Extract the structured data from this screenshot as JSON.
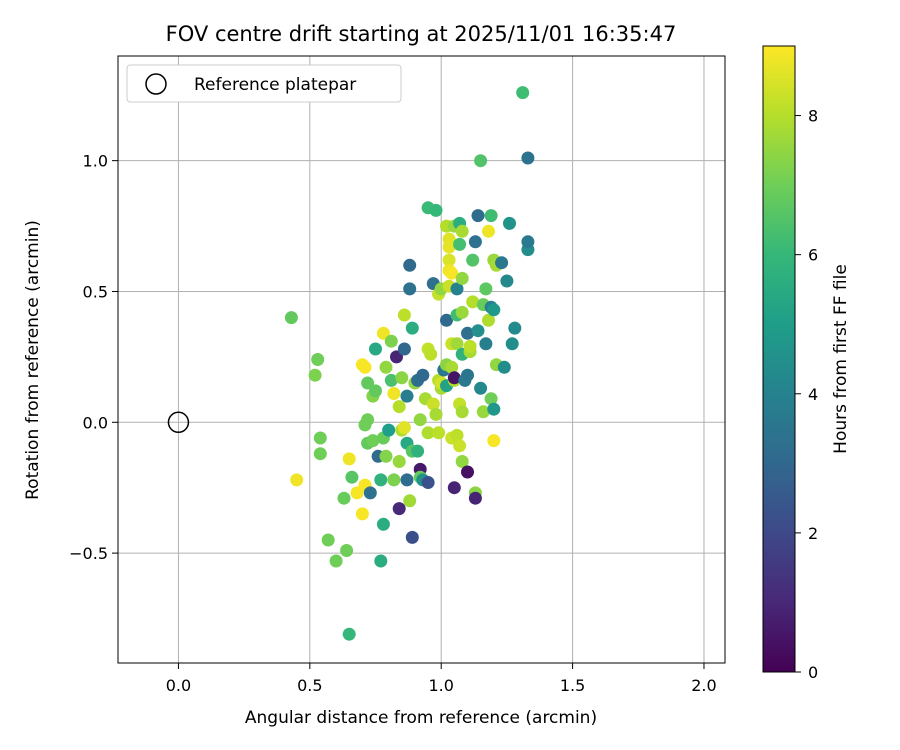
{
  "chart_data": {
    "type": "scatter",
    "title": "FOV centre drift starting at 2025/11/01 16:35:47",
    "xlabel": "Angular distance from reference (arcmin)",
    "ylabel": "Rotation from reference (arcmin)",
    "xlim": [
      -0.23,
      2.08
    ],
    "ylim": [
      -0.92,
      1.4
    ],
    "xticks": [
      0.0,
      0.5,
      1.0,
      1.5,
      2.0
    ],
    "xtick_labels": [
      "0.0",
      "0.5",
      "1.0",
      "1.5",
      "2.0"
    ],
    "yticks": [
      -0.5,
      0.0,
      0.5,
      1.0
    ],
    "ytick_labels": [
      "−0.5",
      "0.0",
      "0.5",
      "1.0"
    ],
    "grid": true,
    "legend": {
      "location": "upper-left",
      "entries": [
        "Reference platepar"
      ]
    },
    "reference_point": {
      "x": 0.0,
      "y": 0.0,
      "marker": "hollow-circle"
    },
    "colorbar": {
      "label": "Hours from first FF file",
      "range": [
        0,
        9
      ],
      "ticks": [
        0,
        2,
        4,
        6,
        8
      ],
      "tick_labels": [
        "0",
        "2",
        "4",
        "6",
        "8"
      ],
      "colormap": "viridis",
      "colors": [
        "#440154",
        "#482878",
        "#3e4989",
        "#31688e",
        "#26828e",
        "#1f9e89",
        "#35b779",
        "#6ece58",
        "#b5de2b",
        "#fde725"
      ]
    },
    "points": [
      {
        "x": 0.43,
        "y": 0.4,
        "h": 6.8
      },
      {
        "x": 0.45,
        "y": -0.22,
        "h": 8.8
      },
      {
        "x": 0.52,
        "y": 0.18,
        "h": 7.2
      },
      {
        "x": 0.53,
        "y": 0.24,
        "h": 7.0
      },
      {
        "x": 0.54,
        "y": -0.06,
        "h": 7.0
      },
      {
        "x": 0.54,
        "y": -0.12,
        "h": 7.0
      },
      {
        "x": 0.57,
        "y": -0.45,
        "h": 7.0
      },
      {
        "x": 0.6,
        "y": -0.53,
        "h": 7.0
      },
      {
        "x": 0.63,
        "y": -0.29,
        "h": 6.9
      },
      {
        "x": 0.64,
        "y": -0.49,
        "h": 7.0
      },
      {
        "x": 0.65,
        "y": -0.81,
        "h": 6.0
      },
      {
        "x": 0.65,
        "y": -0.14,
        "h": 8.8
      },
      {
        "x": 0.66,
        "y": -0.21,
        "h": 6.6
      },
      {
        "x": 0.68,
        "y": -0.27,
        "h": 8.9
      },
      {
        "x": 0.7,
        "y": -0.35,
        "h": 8.9
      },
      {
        "x": 0.7,
        "y": 0.22,
        "h": 8.9
      },
      {
        "x": 0.71,
        "y": 0.21,
        "h": 8.9
      },
      {
        "x": 0.71,
        "y": -0.24,
        "h": 8.9
      },
      {
        "x": 0.71,
        "y": -0.01,
        "h": 7.0
      },
      {
        "x": 0.72,
        "y": 0.01,
        "h": 7.0
      },
      {
        "x": 0.72,
        "y": -0.08,
        "h": 6.8
      },
      {
        "x": 0.72,
        "y": 0.15,
        "h": 6.8
      },
      {
        "x": 0.73,
        "y": -0.27,
        "h": 3.4
      },
      {
        "x": 0.74,
        "y": -0.07,
        "h": 7.0
      },
      {
        "x": 0.74,
        "y": 0.1,
        "h": 7.3
      },
      {
        "x": 0.75,
        "y": 0.12,
        "h": 6.8
      },
      {
        "x": 0.75,
        "y": 0.28,
        "h": 5.4
      },
      {
        "x": 0.76,
        "y": -0.13,
        "h": 3.1
      },
      {
        "x": 0.77,
        "y": -0.22,
        "h": 5.8
      },
      {
        "x": 0.77,
        "y": -0.53,
        "h": 5.6
      },
      {
        "x": 0.78,
        "y": -0.39,
        "h": 5.6
      },
      {
        "x": 0.78,
        "y": 0.34,
        "h": 8.8
      },
      {
        "x": 0.78,
        "y": -0.06,
        "h": 6.9
      },
      {
        "x": 0.79,
        "y": 0.21,
        "h": 7.5
      },
      {
        "x": 0.79,
        "y": -0.13,
        "h": 7.3
      },
      {
        "x": 0.8,
        "y": -0.03,
        "h": 5.0
      },
      {
        "x": 0.81,
        "y": 0.16,
        "h": 6.4
      },
      {
        "x": 0.81,
        "y": 0.31,
        "h": 7.2
      },
      {
        "x": 0.82,
        "y": -0.22,
        "h": 7.2
      },
      {
        "x": 0.82,
        "y": 0.11,
        "h": 8.8
      },
      {
        "x": 0.83,
        "y": 0.25,
        "h": 0.9
      },
      {
        "x": 0.84,
        "y": -0.15,
        "h": 7.6
      },
      {
        "x": 0.84,
        "y": 0.06,
        "h": 8.0
      },
      {
        "x": 0.84,
        "y": -0.33,
        "h": 1.0
      },
      {
        "x": 0.85,
        "y": -0.03,
        "h": 7.9
      },
      {
        "x": 0.85,
        "y": 0.17,
        "h": 7.4
      },
      {
        "x": 0.86,
        "y": -0.02,
        "h": 8.6
      },
      {
        "x": 0.86,
        "y": 0.41,
        "h": 8.1
      },
      {
        "x": 0.86,
        "y": 0.28,
        "h": 3.0
      },
      {
        "x": 0.87,
        "y": -0.08,
        "h": 5.4
      },
      {
        "x": 0.87,
        "y": -0.22,
        "h": 3.2
      },
      {
        "x": 0.87,
        "y": 0.1,
        "h": 3.8
      },
      {
        "x": 0.88,
        "y": -0.3,
        "h": 7.7
      },
      {
        "x": 0.88,
        "y": 0.6,
        "h": 3.1
      },
      {
        "x": 0.88,
        "y": 0.51,
        "h": 3.4
      },
      {
        "x": 0.89,
        "y": -0.44,
        "h": 2.2
      },
      {
        "x": 0.89,
        "y": 0.36,
        "h": 5.6
      },
      {
        "x": 0.89,
        "y": -0.11,
        "h": 6.6
      },
      {
        "x": 0.9,
        "y": 0.15,
        "h": 7.5
      },
      {
        "x": 0.91,
        "y": 0.16,
        "h": 3.2
      },
      {
        "x": 0.91,
        "y": -0.11,
        "h": 5.8
      },
      {
        "x": 0.92,
        "y": -0.18,
        "h": 0.6
      },
      {
        "x": 0.92,
        "y": -0.21,
        "h": 6.9
      },
      {
        "x": 0.92,
        "y": 0.01,
        "h": 7.5
      },
      {
        "x": 0.93,
        "y": 0.18,
        "h": 3.0
      },
      {
        "x": 0.93,
        "y": -0.22,
        "h": 4.6
      },
      {
        "x": 0.94,
        "y": 0.09,
        "h": 7.8
      },
      {
        "x": 0.95,
        "y": -0.23,
        "h": 2.3
      },
      {
        "x": 0.95,
        "y": 0.28,
        "h": 8.2
      },
      {
        "x": 0.95,
        "y": -0.04,
        "h": 7.9
      },
      {
        "x": 0.95,
        "y": 0.82,
        "h": 6.1
      },
      {
        "x": 0.96,
        "y": 0.26,
        "h": 8.1
      },
      {
        "x": 0.97,
        "y": 0.53,
        "h": 3.3
      },
      {
        "x": 0.97,
        "y": 0.07,
        "h": 8.3
      },
      {
        "x": 0.98,
        "y": 0.81,
        "h": 6.0
      },
      {
        "x": 0.98,
        "y": 0.03,
        "h": 7.8
      },
      {
        "x": 0.99,
        "y": 0.16,
        "h": 8.0
      },
      {
        "x": 0.99,
        "y": -0.04,
        "h": 8.1
      },
      {
        "x": 0.99,
        "y": 0.49,
        "h": 8.2
      },
      {
        "x": 1.0,
        "y": 0.13,
        "h": 7.8
      },
      {
        "x": 1.0,
        "y": 0.15,
        "h": 8.4
      },
      {
        "x": 1.0,
        "y": 0.51,
        "h": 7.5
      },
      {
        "x": 1.01,
        "y": 0.2,
        "h": 3.6
      },
      {
        "x": 1.02,
        "y": 0.14,
        "h": 5.2
      },
      {
        "x": 1.02,
        "y": 0.22,
        "h": 7.4
      },
      {
        "x": 1.02,
        "y": 0.75,
        "h": 8.0
      },
      {
        "x": 1.02,
        "y": 0.39,
        "h": 3.0
      },
      {
        "x": 1.03,
        "y": 0.52,
        "h": 8.3
      },
      {
        "x": 1.03,
        "y": 0.62,
        "h": 8.5
      },
      {
        "x": 1.03,
        "y": 0.7,
        "h": 8.6
      },
      {
        "x": 1.03,
        "y": 0.58,
        "h": 8.8
      },
      {
        "x": 1.03,
        "y": 0.67,
        "h": 8.7
      },
      {
        "x": 1.04,
        "y": 0.21,
        "h": 7.8
      },
      {
        "x": 1.04,
        "y": 0.3,
        "h": 8.3
      },
      {
        "x": 1.04,
        "y": -0.06,
        "h": 8.3
      },
      {
        "x": 1.04,
        "y": 0.57,
        "h": 8.9
      },
      {
        "x": 1.05,
        "y": 0.16,
        "h": 7.9
      },
      {
        "x": 1.05,
        "y": 0.17,
        "h": 0.5
      },
      {
        "x": 1.05,
        "y": -0.25,
        "h": 0.9
      },
      {
        "x": 1.05,
        "y": 0.75,
        "h": 7.6
      },
      {
        "x": 1.06,
        "y": 0.51,
        "h": 4.0
      },
      {
        "x": 1.06,
        "y": 0.41,
        "h": 6.2
      },
      {
        "x": 1.06,
        "y": 0.3,
        "h": 7.7
      },
      {
        "x": 1.06,
        "y": -0.05,
        "h": 8.1
      },
      {
        "x": 1.07,
        "y": 0.07,
        "h": 8.2
      },
      {
        "x": 1.07,
        "y": -0.09,
        "h": 8.3
      },
      {
        "x": 1.07,
        "y": 0.76,
        "h": 5.6
      },
      {
        "x": 1.07,
        "y": 0.68,
        "h": 6.3
      },
      {
        "x": 1.08,
        "y": 0.04,
        "h": 7.8
      },
      {
        "x": 1.08,
        "y": 0.26,
        "h": 5.8
      },
      {
        "x": 1.08,
        "y": 0.42,
        "h": 7.6
      },
      {
        "x": 1.08,
        "y": -0.15,
        "h": 7.5
      },
      {
        "x": 1.08,
        "y": 0.55,
        "h": 7.5
      },
      {
        "x": 1.08,
        "y": 0.73,
        "h": 7.8
      },
      {
        "x": 1.09,
        "y": 0.16,
        "h": 3.7
      },
      {
        "x": 1.1,
        "y": 0.34,
        "h": 3.3
      },
      {
        "x": 1.1,
        "y": -0.19,
        "h": 0.4
      },
      {
        "x": 1.1,
        "y": 0.18,
        "h": 3.5
      },
      {
        "x": 1.11,
        "y": 0.27,
        "h": 7.8
      },
      {
        "x": 1.11,
        "y": 0.29,
        "h": 8.1
      },
      {
        "x": 1.12,
        "y": 0.46,
        "h": 8.0
      },
      {
        "x": 1.12,
        "y": 0.62,
        "h": 6.5
      },
      {
        "x": 1.13,
        "y": -0.27,
        "h": 7.4
      },
      {
        "x": 1.13,
        "y": 0.69,
        "h": 3.4
      },
      {
        "x": 1.13,
        "y": -0.29,
        "h": 0.9
      },
      {
        "x": 1.14,
        "y": 0.79,
        "h": 3.2
      },
      {
        "x": 1.14,
        "y": 0.35,
        "h": 4.5
      },
      {
        "x": 1.15,
        "y": 0.13,
        "h": 4.2
      },
      {
        "x": 1.15,
        "y": 1.0,
        "h": 6.5
      },
      {
        "x": 1.16,
        "y": 0.04,
        "h": 7.6
      },
      {
        "x": 1.16,
        "y": 0.45,
        "h": 6.9
      },
      {
        "x": 1.17,
        "y": 0.3,
        "h": 3.9
      },
      {
        "x": 1.17,
        "y": 0.51,
        "h": 6.7
      },
      {
        "x": 1.18,
        "y": 0.39,
        "h": 7.9
      },
      {
        "x": 1.18,
        "y": 0.73,
        "h": 8.8
      },
      {
        "x": 1.19,
        "y": 0.09,
        "h": 7.0
      },
      {
        "x": 1.19,
        "y": 0.44,
        "h": 4.0
      },
      {
        "x": 1.19,
        "y": 0.79,
        "h": 6.2
      },
      {
        "x": 1.2,
        "y": 0.62,
        "h": 7.6
      },
      {
        "x": 1.2,
        "y": -0.07,
        "h": 8.9
      },
      {
        "x": 1.2,
        "y": 0.43,
        "h": 4.8
      },
      {
        "x": 1.2,
        "y": 0.05,
        "h": 4.7
      },
      {
        "x": 1.21,
        "y": 0.22,
        "h": 7.5
      },
      {
        "x": 1.21,
        "y": 0.6,
        "h": 7.8
      },
      {
        "x": 1.23,
        "y": 0.61,
        "h": 3.6
      },
      {
        "x": 1.24,
        "y": 0.21,
        "h": 4.4
      },
      {
        "x": 1.25,
        "y": 0.54,
        "h": 4.2
      },
      {
        "x": 1.26,
        "y": 0.76,
        "h": 4.6
      },
      {
        "x": 1.27,
        "y": 0.3,
        "h": 4.4
      },
      {
        "x": 1.28,
        "y": 0.36,
        "h": 4.3
      },
      {
        "x": 1.31,
        "y": 1.26,
        "h": 6.2
      },
      {
        "x": 1.33,
        "y": 1.01,
        "h": 3.4
      },
      {
        "x": 1.33,
        "y": 0.66,
        "h": 4.4
      },
      {
        "x": 1.33,
        "y": 0.69,
        "h": 3.7
      }
    ]
  }
}
